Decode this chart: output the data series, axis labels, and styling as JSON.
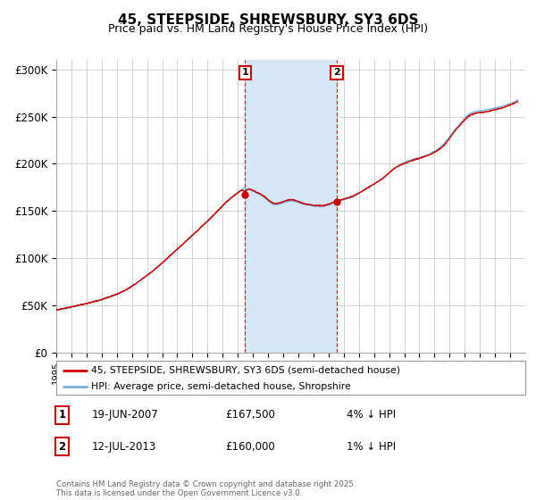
{
  "title": "45, STEEPSIDE, SHREWSBURY, SY3 6DS",
  "subtitle": "Price paid vs. HM Land Registry's House Price Index (HPI)",
  "ylim": [
    0,
    310000
  ],
  "yticks": [
    0,
    50000,
    100000,
    150000,
    200000,
    250000,
    300000
  ],
  "ytick_labels": [
    "£0",
    "£50K",
    "£100K",
    "£150K",
    "£200K",
    "£250K",
    "£300K"
  ],
  "xstart_year": 1995,
  "xend_year": 2025,
  "hpi_color": "#7ab3e0",
  "price_color": "#cc0000",
  "shade_color": "#d6e8f7",
  "annotation1": {
    "label": "1",
    "year": 2007.47,
    "price": 167500,
    "hpi_price": 174500,
    "text": "19-JUN-2007",
    "amount": "£167,500",
    "pct": "4% ↓ HPI"
  },
  "annotation2": {
    "label": "2",
    "year": 2013.54,
    "price": 160000,
    "hpi_price": 161600,
    "text": "12-JUL-2013",
    "amount": "£160,000",
    "pct": "1% ↓ HPI"
  },
  "legend_line1": "45, STEEPSIDE, SHREWSBURY, SY3 6DS (semi-detached house)",
  "legend_line2": "HPI: Average price, semi-detached house, Shropshire",
  "footer": "Contains HM Land Registry data © Crown copyright and database right 2025.\nThis data is licensed under the Open Government Licence v3.0.",
  "background_color": "#ffffff",
  "grid_color": "#cccccc",
  "title_fontsize": 11,
  "subtitle_fontsize": 9
}
